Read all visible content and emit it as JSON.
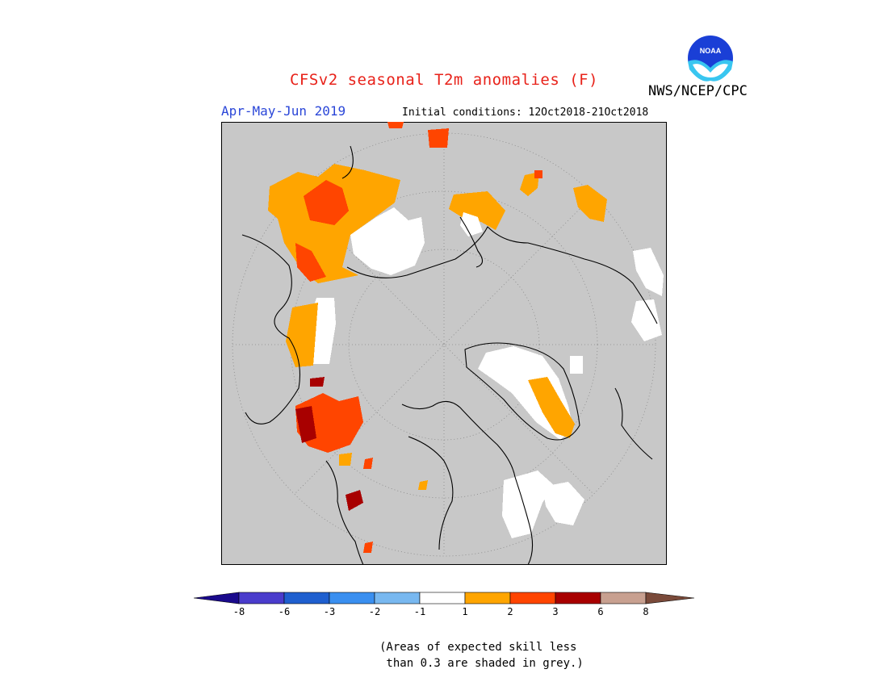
{
  "header": {
    "title": "CFSv2 seasonal T2m anomalies (F)",
    "period": "Apr-May-Jun 2019",
    "initial_conditions": "Initial conditions: 12Oct2018-21Oct2018",
    "agency": "NWS/NCEP/CPC",
    "logo_text": "NOAA"
  },
  "colors": {
    "skill_grey": "#c8c8c8",
    "coastline": "#000000",
    "graticule": "#888888"
  },
  "legend": {
    "left_end_color": "#1a0a8c",
    "right_end_color": "#7a4a3a",
    "bins": [
      {
        "color": "#4a3ccc"
      },
      {
        "color": "#1f5fcf"
      },
      {
        "color": "#3a8ff0"
      },
      {
        "color": "#78b8f0"
      },
      {
        "color": "#ffffff"
      },
      {
        "color": "#ffa500"
      },
      {
        "color": "#ff4500"
      },
      {
        "color": "#a80000"
      },
      {
        "color": "#c8a090"
      }
    ],
    "tick_labels": [
      "-8",
      "-6",
      "-3",
      "-2",
      "-1",
      "1",
      "2",
      "3",
      "6",
      "8"
    ]
  },
  "note": "(Areas of expected skill less\n than 0.3 are shaded in grey.)"
}
